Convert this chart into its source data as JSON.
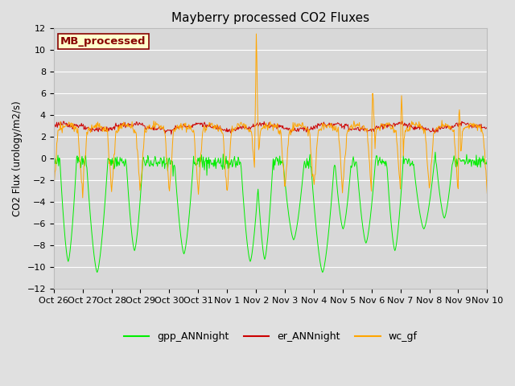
{
  "title": "Mayberry processed CO2 Fluxes",
  "ylabel": "CO2 Flux (urology/m2/s)",
  "ylim": [
    -12,
    12
  ],
  "yticks": [
    -12,
    -10,
    -8,
    -6,
    -4,
    -2,
    0,
    2,
    4,
    6,
    8,
    10,
    12
  ],
  "legend_labels": [
    "gpp_ANNnight",
    "er_ANNnight",
    "wc_gf"
  ],
  "watermark_text": "MB_processed",
  "watermark_bg": "#ffffcc",
  "watermark_fg": "#880000",
  "xtick_labels": [
    "Oct 26",
    "Oct 27",
    "Oct 28",
    "Oct 29",
    "Oct 30",
    "Oct 31",
    "Nov 1",
    "Nov 2",
    "Nov 3",
    "Nov 4",
    "Nov 5",
    "Nov 6",
    "Nov 7",
    "Nov 8",
    "Nov 9",
    "Nov 10"
  ],
  "gpp_color": "#00ee00",
  "er_color": "#cc0000",
  "wc_color": "#ffa500",
  "legend_colors": [
    "#00ee00",
    "#cc0000",
    "#ffa500"
  ],
  "line_width": 0.7,
  "fig_facecolor": "#e0e0e0",
  "axes_facecolor": "#d8d8d8",
  "grid_color": "#ffffff",
  "n_days": 15,
  "pts_per_day": 48
}
